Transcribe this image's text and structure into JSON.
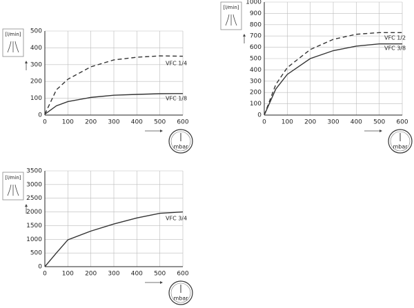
{
  "chart_data": [
    {
      "type": "line",
      "y_unit": "[l/min]",
      "x_unit": "mbar",
      "x": [
        0,
        50,
        100,
        200,
        300,
        400,
        500,
        600
      ],
      "xlim": [
        0,
        600
      ],
      "xticks": [
        0,
        100,
        200,
        300,
        400,
        500,
        600
      ],
      "ylim": [
        0,
        500
      ],
      "yticks": [
        0,
        100,
        200,
        300,
        400,
        500
      ],
      "grid": true,
      "series": [
        {
          "name": "VFC 1/4",
          "color": "#333333",
          "style": "dashed",
          "values": [
            5,
            150,
            213,
            287,
            328,
            344,
            352,
            350
          ]
        },
        {
          "name": "VFC 1/8",
          "color": "#333333",
          "style": "solid",
          "values": [
            5,
            55,
            80,
            105,
            118,
            123,
            127,
            128
          ]
        }
      ]
    },
    {
      "type": "line",
      "y_unit": "[l/min]",
      "x_unit": "mbar",
      "x": [
        0,
        50,
        100,
        200,
        300,
        400,
        500,
        600
      ],
      "xlim": [
        0,
        600
      ],
      "xticks": [
        0,
        100,
        200,
        300,
        400,
        500,
        600
      ],
      "ylim": [
        0,
        1000
      ],
      "yticks": [
        0,
        100,
        200,
        300,
        400,
        500,
        600,
        700,
        800,
        900,
        1000
      ],
      "grid": true,
      "series": [
        {
          "name": "VFC 1/2",
          "color": "#333333",
          "style": "dashed",
          "values": [
            0,
            270,
            420,
            580,
            670,
            715,
            730,
            730
          ]
        },
        {
          "name": "VFC 3/8",
          "color": "#333333",
          "style": "solid",
          "values": [
            0,
            230,
            360,
            500,
            570,
            610,
            630,
            630
          ]
        }
      ]
    },
    {
      "type": "line",
      "y_unit": "[l/min]",
      "x_unit": "mbar",
      "x": [
        0,
        50,
        100,
        200,
        300,
        400,
        500,
        600
      ],
      "xlim": [
        0,
        600
      ],
      "xticks": [
        0,
        100,
        200,
        300,
        400,
        500,
        600
      ],
      "ylim": [
        0,
        3500
      ],
      "yticks": [
        0,
        500,
        1000,
        1500,
        2000,
        2500,
        3000,
        3500
      ],
      "grid": true,
      "series": [
        {
          "name": "VFC 3/4",
          "color": "#333333",
          "style": "solid",
          "values": [
            0,
            500,
            980,
            1300,
            1560,
            1780,
            1950,
            2000
          ]
        }
      ]
    }
  ]
}
